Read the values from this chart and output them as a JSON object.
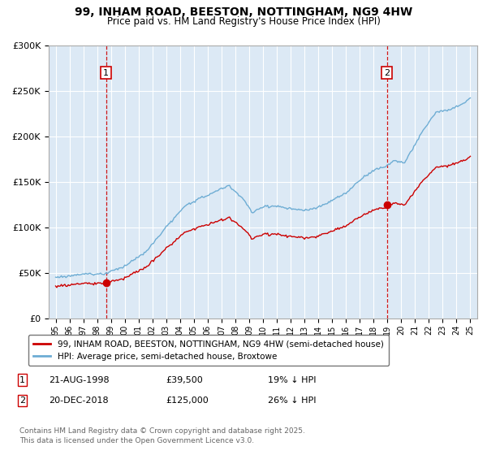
{
  "title": "99, INHAM ROAD, BEESTON, NOTTINGHAM, NG9 4HW",
  "subtitle": "Price paid vs. HM Land Registry's House Price Index (HPI)",
  "legend_line1": "99, INHAM ROAD, BEESTON, NOTTINGHAM, NG9 4HW (semi-detached house)",
  "legend_line2": "HPI: Average price, semi-detached house, Broxtowe",
  "annotation1_date": "21-AUG-1998",
  "annotation1_price": "£39,500",
  "annotation1_hpi": "19% ↓ HPI",
  "annotation2_date": "20-DEC-2018",
  "annotation2_price": "£125,000",
  "annotation2_hpi": "26% ↓ HPI",
  "footnote": "Contains HM Land Registry data © Crown copyright and database right 2025.\nThis data is licensed under the Open Government Licence v3.0.",
  "hpi_color": "#6eadd4",
  "price_color": "#cc0000",
  "marker_color": "#cc0000",
  "bg_color": "#dce9f5",
  "grid_color": "#ffffff",
  "vline_color": "#cc0000",
  "box_color": "#cc0000",
  "ylim": [
    0,
    300000
  ],
  "yticks": [
    0,
    50000,
    100000,
    150000,
    200000,
    250000,
    300000
  ],
  "sale1_year": 1998.64,
  "sale1_price": 39500,
  "sale2_year": 2018.97,
  "sale2_price": 125000
}
